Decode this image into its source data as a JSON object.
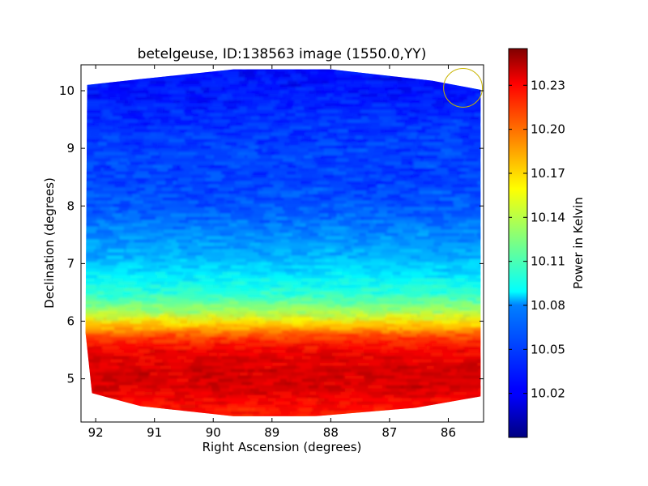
{
  "chart_data": {
    "type": "heatmap",
    "title": "betelgeuse, ID:138563 image (1550.0,YY)",
    "xlabel": "Right Ascension (degrees)",
    "ylabel": "Declination (degrees)",
    "colorbar_label": "Power in Kelvin",
    "xlim": [
      92.25,
      85.4
    ],
    "ylim": [
      4.25,
      10.45
    ],
    "x_ticks": [
      92,
      91,
      90,
      89,
      88,
      87,
      86
    ],
    "y_ticks": [
      5,
      6,
      7,
      8,
      9,
      10
    ],
    "colorbar_range": [
      9.99,
      10.255
    ],
    "colorbar_ticks": [
      "10.02",
      "10.05",
      "10.08",
      "10.11",
      "10.14",
      "10.17",
      "10.20",
      "10.23"
    ],
    "colormap": "jet",
    "grid": false,
    "footprint": {
      "top_dec": 10.4,
      "bottom_dec": 4.35,
      "left_ra": 92.2,
      "right_ra": 85.45,
      "upper_corner_dec": 10.1,
      "lower_corner_dec": 4.75
    },
    "circle_marker": {
      "ra": 85.75,
      "dec": 10.05,
      "radius_deg": 0.33,
      "color": "#c8b400"
    },
    "dec_profile": [
      {
        "dec": 4.35,
        "value": 10.215
      },
      {
        "dec": 4.6,
        "value": 10.222
      },
      {
        "dec": 4.9,
        "value": 10.232
      },
      {
        "dec": 5.2,
        "value": 10.232
      },
      {
        "dec": 5.5,
        "value": 10.225
      },
      {
        "dec": 5.75,
        "value": 10.205
      },
      {
        "dec": 5.95,
        "value": 10.17
      },
      {
        "dec": 6.2,
        "value": 10.13
      },
      {
        "dec": 6.5,
        "value": 10.1
      },
      {
        "dec": 6.8,
        "value": 10.085
      },
      {
        "dec": 7.1,
        "value": 10.07
      },
      {
        "dec": 7.5,
        "value": 10.06
      },
      {
        "dec": 8.0,
        "value": 10.045
      },
      {
        "dec": 8.5,
        "value": 10.04
      },
      {
        "dec": 9.0,
        "value": 10.04
      },
      {
        "dec": 9.5,
        "value": 10.035
      },
      {
        "dec": 10.0,
        "value": 10.028
      },
      {
        "dec": 10.4,
        "value": 10.025
      }
    ]
  }
}
